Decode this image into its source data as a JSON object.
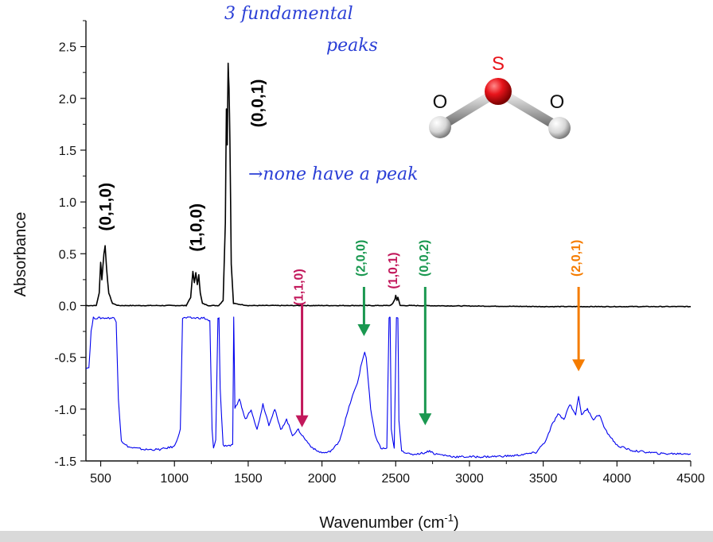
{
  "chart_data": {
    "type": "line",
    "xlabel": "Wavenumber (cm",
    "xlabel_sup": "-1",
    "xlabel_close": ")",
    "ylabel": "Absorbance",
    "xlim": [
      400,
      4500
    ],
    "ylim": [
      -1.5,
      2.75
    ],
    "x_ticks": [
      500,
      1000,
      1500,
      2000,
      2500,
      3000,
      3500,
      4000,
      4500
    ],
    "x_tick_labels": [
      "500",
      "1000",
      "1500",
      "2000",
      "2500",
      "3000",
      "3500",
      "4000",
      "4500"
    ],
    "y_ticks": [
      2.5,
      2.0,
      1.5,
      1.0,
      0.5,
      0.0,
      -0.5,
      -1.0,
      -1.5
    ],
    "y_tick_labels": [
      "2.5",
      "2.0",
      "1.5",
      "1.0",
      "0.5",
      "0.0",
      "-0.5",
      "-1.0",
      "-1.5"
    ],
    "series": [
      {
        "color": "#000000",
        "x": [
          400,
          470,
          490,
          500,
          508,
          515,
          522,
          530,
          540,
          555,
          580,
          620,
          1000,
          1080,
          1110,
          1125,
          1135,
          1145,
          1155,
          1165,
          1175,
          1190,
          1230,
          1300,
          1330,
          1345,
          1352,
          1358,
          1364,
          1370,
          1376,
          1385,
          1400,
          1500,
          2460,
          2480,
          2495,
          2500,
          2508,
          2515,
          2530,
          2600,
          3500,
          4500
        ],
        "y": [
          0.0,
          0.0,
          0.12,
          0.42,
          0.25,
          0.38,
          0.5,
          0.58,
          0.35,
          0.12,
          0.02,
          0.0,
          0.0,
          0.0,
          0.08,
          0.33,
          0.22,
          0.32,
          0.2,
          0.3,
          0.12,
          0.02,
          0.0,
          0.0,
          0.05,
          0.8,
          1.9,
          1.55,
          2.34,
          2.1,
          1.6,
          0.4,
          0.02,
          0.0,
          0.0,
          0.02,
          0.06,
          0.1,
          0.05,
          0.08,
          0.0,
          0.0,
          -0.01,
          -0.01
        ]
      },
      {
        "color": "#0000ee",
        "x": [
          400,
          420,
          435,
          450,
          470,
          500,
          560,
          590,
          605,
          620,
          640,
          660,
          700,
          800,
          900,
          1000,
          1040,
          1055,
          1068,
          1080,
          1100,
          1200,
          1240,
          1255,
          1265,
          1280,
          1295,
          1302,
          1310,
          1330,
          1395,
          1402,
          1410,
          1440,
          1480,
          1520,
          1560,
          1600,
          1640,
          1680,
          1720,
          1760,
          1800,
          1840,
          1880,
          1920,
          1960,
          2000,
          2040,
          2080,
          2120,
          2160,
          2200,
          2240,
          2270,
          2290,
          2300,
          2315,
          2330,
          2360,
          2400,
          2440,
          2455,
          2462,
          2470,
          2490,
          2505,
          2515,
          2522,
          2540,
          2600,
          2700,
          2730,
          2760,
          2900,
          3100,
          3300,
          3450,
          3520,
          3560,
          3600,
          3640,
          3680,
          3720,
          3740,
          3760,
          3800,
          3840,
          3880,
          3920,
          4000,
          4100,
          4300,
          4500
        ],
        "y": [
          -0.6,
          -0.6,
          -0.25,
          -0.12,
          -0.12,
          -0.12,
          -0.12,
          -0.12,
          -0.15,
          -0.9,
          -1.3,
          -1.34,
          -1.37,
          -1.39,
          -1.39,
          -1.36,
          -1.2,
          -0.12,
          -0.12,
          -0.12,
          -0.12,
          -0.12,
          -0.15,
          -1.2,
          -1.38,
          -1.3,
          -0.12,
          -0.12,
          -0.8,
          -1.35,
          -1.35,
          -0.12,
          -1.0,
          -0.9,
          -1.1,
          -1.0,
          -1.2,
          -0.95,
          -1.15,
          -1.0,
          -1.2,
          -1.1,
          -1.25,
          -1.2,
          -1.28,
          -1.35,
          -1.4,
          -1.42,
          -1.42,
          -1.38,
          -1.3,
          -1.1,
          -0.9,
          -0.75,
          -0.55,
          -0.45,
          -0.5,
          -0.75,
          -1.0,
          -1.25,
          -1.38,
          -1.38,
          -0.12,
          -0.12,
          -1.2,
          -1.38,
          -0.12,
          -0.12,
          -1.1,
          -1.4,
          -1.44,
          -1.42,
          -1.4,
          -1.43,
          -1.46,
          -1.46,
          -1.45,
          -1.42,
          -1.3,
          -1.15,
          -1.05,
          -1.1,
          -0.95,
          -1.05,
          -0.88,
          -1.05,
          -1.0,
          -1.1,
          -1.05,
          -1.2,
          -1.35,
          -1.4,
          -1.43,
          -1.43
        ]
      }
    ],
    "mode_labels": [
      {
        "text": "(0,1,0)",
        "x": 530,
        "y": 0.72,
        "color": "#000000",
        "size": 21
      },
      {
        "text": "(1,0,0)",
        "x": 1145,
        "y": 0.52,
        "color": "#000000",
        "size": 21
      },
      {
        "text": "(0,0,1)",
        "x": 1560,
        "y": 1.72,
        "color": "#000000",
        "size": 21
      },
      {
        "text": "(1,1,0)",
        "x": 1840,
        "y": 0.0,
        "color": "#c2185b",
        "size": 16
      },
      {
        "text": "(2,0,0)",
        "x": 2260,
        "y": 0.28,
        "color": "#1a9850",
        "size": 16
      },
      {
        "text": "(1,0,1)",
        "x": 2480,
        "y": 0.16,
        "color": "#c2185b",
        "size": 16
      },
      {
        "text": "(0,0,2)",
        "x": 2690,
        "y": 0.28,
        "color": "#1a9850",
        "size": 16
      },
      {
        "text": "(2,0,1)",
        "x": 3720,
        "y": 0.28,
        "color": "#f57c00",
        "size": 16
      }
    ],
    "arrows": [
      {
        "x": 1865,
        "y_from": 0.02,
        "y_to": -1.16,
        "color": "#c2185b"
      },
      {
        "x": 2285,
        "y_from": 0.18,
        "y_to": -0.28,
        "color": "#1a9850"
      },
      {
        "x": 2700,
        "y_from": 0.18,
        "y_to": -1.14,
        "color": "#1a9850"
      },
      {
        "x": 3740,
        "y_from": 0.18,
        "y_to": -0.62,
        "color": "#f57c00"
      }
    ]
  },
  "molecule": {
    "center_atom": "S",
    "left_atom": "O",
    "right_atom": "O",
    "center_color": "#e8141b"
  },
  "handwriting": {
    "line1": "3 fundamental",
    "line2": "peaks",
    "note": "→none have a peak"
  }
}
